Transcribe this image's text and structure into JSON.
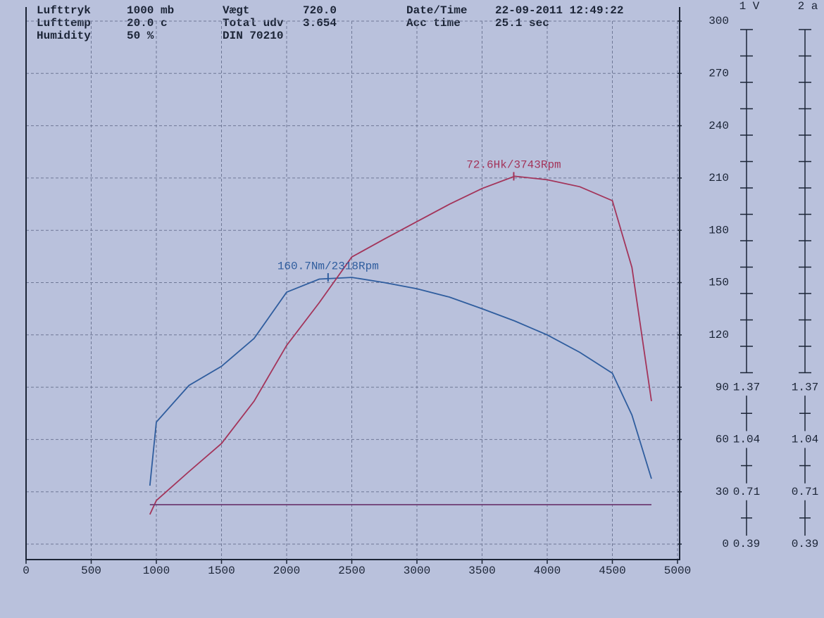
{
  "chart_data": {
    "type": "line",
    "header": [
      {
        "label": "Lufttryk",
        "value": "1000 mb"
      },
      {
        "label": "Lufttemp",
        "value": "20.0 c"
      },
      {
        "label": "Humidity",
        "value": "50 %"
      },
      {
        "label": "Vægt",
        "value": "720.0"
      },
      {
        "label": "Total udv",
        "value": "3.654"
      },
      {
        "label": "DIN 70210"
      },
      {
        "label": "Date/Time",
        "value": "22-09-2011 12:49:22"
      },
      {
        "label": "Acc time",
        "value": "25.1 sec"
      }
    ],
    "x": [
      950,
      1000,
      1250,
      1500,
      1750,
      2000,
      2250,
      2500,
      2750,
      3000,
      3250,
      3500,
      3750,
      4000,
      4250,
      4500,
      4650,
      4800
    ],
    "series": [
      {
        "color": "#2f5d9e",
        "values": [
          33.5,
          70,
          91,
          102,
          118,
          144.5,
          152,
          153,
          150,
          146.5,
          141.7,
          135,
          128,
          120,
          110,
          98,
          74,
          37.5
        ]
      },
      {
        "color": "#a3345a",
        "values": [
          17,
          25,
          41.6,
          57.7,
          82,
          114,
          138.5,
          164.7,
          175,
          185,
          195,
          204,
          211,
          209,
          205,
          197,
          158.7,
          82
        ]
      },
      {
        "color": "#6e3a72",
        "values": [
          22.6,
          22.6,
          22.6,
          22.6,
          22.6,
          22.6,
          22.6,
          22.6,
          22.6,
          22.6,
          22.6,
          22.6,
          22.6,
          22.6,
          22.6,
          22.6,
          22.6,
          22.6
        ]
      }
    ],
    "annotations": [
      {
        "text": "160.7Nm/2318Rpm",
        "x": 2318,
        "y": 153,
        "color": "#2f5d9e"
      },
      {
        "text": "72.6Hk/3743Rpm",
        "x": 3743,
        "y": 211,
        "color": "#a3345a"
      }
    ],
    "xlim": [
      0,
      5000
    ],
    "xticks": [
      0,
      500,
      1000,
      1500,
      2000,
      2500,
      3000,
      3500,
      4000,
      4500,
      5000
    ],
    "ylim": [
      0,
      300
    ],
    "yticks": [
      0,
      30,
      60,
      90,
      120,
      150,
      180,
      210,
      240,
      270,
      300
    ],
    "grid": true,
    "side_scales": [
      {
        "title": "1 V",
        "labels": [
          "1.37",
          "1.04",
          "0.71",
          "0.39"
        ]
      },
      {
        "title": "2 a",
        "labels": [
          "1.37",
          "1.04",
          "0.71",
          "0.39"
        ]
      }
    ]
  }
}
